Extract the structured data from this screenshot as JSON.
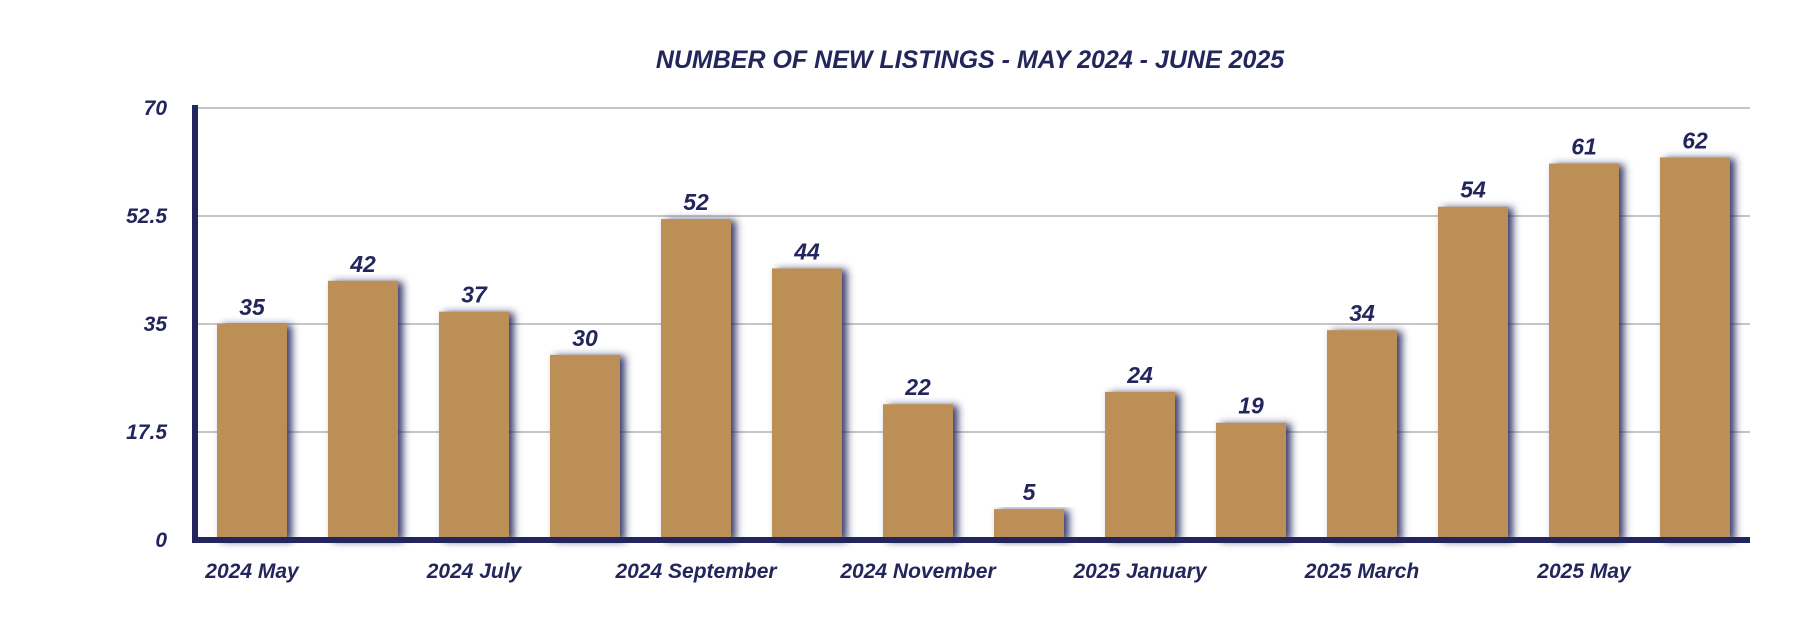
{
  "chart_data": {
    "type": "bar",
    "title": "NUMBER OF NEW LISTINGS - MAY 2024 - JUNE 2025",
    "xlabel": "",
    "ylabel": "",
    "categories": [
      "2024 May",
      "",
      "2024 July",
      "",
      "2024 September",
      "",
      "2024 November",
      "",
      "2025 January",
      "",
      "2025 March",
      "",
      "2025 May",
      ""
    ],
    "values": [
      35,
      42,
      37,
      30,
      52,
      44,
      22,
      5,
      24,
      19,
      34,
      54,
      61,
      62
    ],
    "ylim": [
      0,
      70
    ],
    "yticks": [
      0,
      17.5,
      35,
      52.5,
      70
    ],
    "ytick_labels": [
      "0",
      "17.5",
      "35",
      "52.5",
      "70"
    ],
    "grid": true,
    "legend": "none",
    "data_labels": true
  },
  "colors": {
    "bar": "#bc8f56",
    "text": "#23265c",
    "axis": "#23265c",
    "grid": "#b3b3b3",
    "shadow": "#23265c"
  }
}
